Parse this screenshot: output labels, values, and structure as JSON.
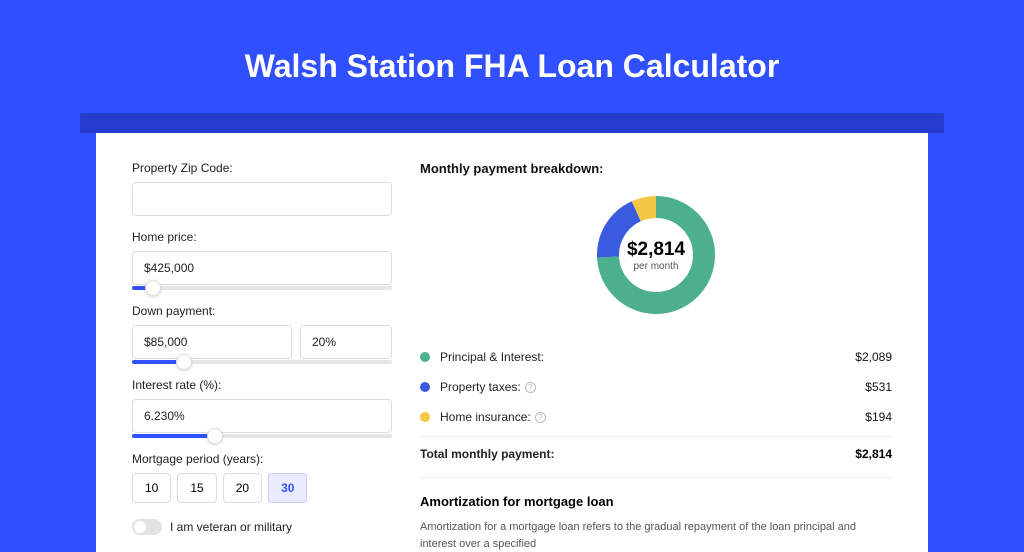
{
  "hero": {
    "title": "Walsh Station FHA Loan Calculator"
  },
  "form": {
    "zip_label": "Property Zip Code:",
    "zip_value": "",
    "home_price_label": "Home price:",
    "home_price_value": "$425,000",
    "home_price_slider_pct": 8,
    "down_payment_label": "Down payment:",
    "down_payment_value": "$85,000",
    "down_payment_pct_value": "20%",
    "down_payment_slider_pct": 20,
    "interest_label": "Interest rate (%):",
    "interest_value": "6.230%",
    "interest_slider_pct": 32,
    "period_label": "Mortgage period (years):",
    "periods": [
      "10",
      "15",
      "20",
      "30"
    ],
    "period_active_index": 3,
    "veteran_label": "I am veteran or military"
  },
  "breakdown": {
    "title": "Monthly payment breakdown:",
    "donut": {
      "amount": "$2,814",
      "sub": "per month",
      "segments": [
        {
          "label": "Principal & Interest:",
          "value": "$2,089",
          "pct": 74.2,
          "color": "#4caf8e"
        },
        {
          "label": "Property taxes:",
          "value": "$531",
          "pct": 18.9,
          "color": "#3a5be0",
          "info": true
        },
        {
          "label": "Home insurance:",
          "value": "$194",
          "pct": 6.9,
          "color": "#f2c744",
          "info": true
        }
      ]
    },
    "total_label": "Total monthly payment:",
    "total_value": "$2,814"
  },
  "amort": {
    "title": "Amortization for mortgage loan",
    "text": "Amortization for a mortgage loan refers to the gradual repayment of the loan principal and interest over a specified"
  },
  "colors": {
    "page_bg": "#304ffe",
    "shadow": "#253bcc"
  }
}
